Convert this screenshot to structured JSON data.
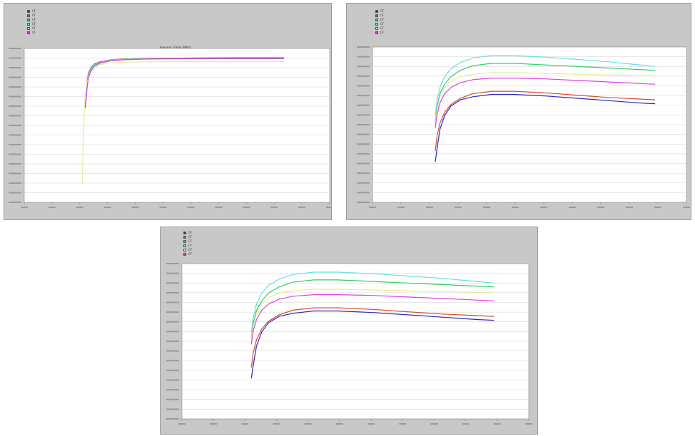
{
  "colors": {
    "panel_bg": "#c8c8c8",
    "plot_bg": "#ffffff",
    "grid": "#d0d0d0",
    "series": [
      "#2a2ab8",
      "#d94a2a",
      "#33cc66",
      "#66e0e0",
      "#eaea99",
      "#e040e0"
    ]
  },
  "chart_data": [
    {
      "type": "line",
      "title": "Average 2-Tone (Mb/s)",
      "xlabel": "",
      "ylabel": "",
      "grid": true,
      "legend_position": "top-left",
      "xlim": [
        0,
        100
      ],
      "ylim": [
        0,
        100
      ],
      "series": [
        {
          "name": "CF",
          "x": [
            20,
            20.5,
            21,
            22,
            23,
            25,
            28,
            32,
            40,
            50,
            60,
            70,
            80,
            85
          ],
          "values": [
            62,
            74,
            82,
            87,
            89,
            91,
            92,
            93,
            93.5,
            93.7,
            93.8,
            93.9,
            93.9,
            93.9
          ]
        },
        {
          "name": "CF",
          "x": [
            20,
            20.5,
            21,
            22,
            23,
            25,
            28,
            32,
            40,
            50,
            60,
            70,
            80,
            85
          ],
          "values": [
            66,
            78,
            84,
            88,
            90,
            91.5,
            92.5,
            93.2,
            93.5,
            93.6,
            93.6,
            93.6,
            93.6,
            93.6
          ]
        },
        {
          "name": "CF",
          "x": [
            20,
            20.5,
            21,
            22,
            23,
            25,
            28,
            32,
            40,
            50,
            60,
            70,
            80,
            85
          ],
          "values": [
            64,
            76,
            83,
            87.5,
            89.5,
            91,
            92.2,
            93,
            93.4,
            93.5,
            93.5,
            93.5,
            93.5,
            93.5
          ]
        },
        {
          "name": "CF",
          "x": [
            20,
            20.5,
            21,
            22,
            23,
            25,
            28,
            32,
            40,
            50,
            60,
            70,
            80,
            85
          ],
          "values": [
            63,
            75,
            82.5,
            87,
            89.2,
            91,
            92.2,
            93,
            93.3,
            93.4,
            93.4,
            93.4,
            93.4,
            93.4
          ]
        },
        {
          "name": "CF",
          "x": [
            19,
            19.3,
            19.8,
            20.5,
            21.5,
            23,
            25,
            28,
            32,
            40,
            50,
            60,
            70,
            80,
            85
          ],
          "values": [
            12,
            40,
            65,
            78,
            84,
            87.5,
            89.5,
            90.5,
            91,
            91.3,
            91.4,
            91.4,
            91.4,
            91.4,
            91.4
          ]
        },
        {
          "name": "CF",
          "x": [
            20,
            20.5,
            21,
            22,
            23,
            25,
            28,
            32,
            40,
            50,
            60,
            70,
            80,
            85
          ],
          "values": [
            61,
            73,
            81,
            86,
            88.5,
            90.5,
            91.8,
            92.6,
            93.1,
            93.3,
            93.4,
            93.4,
            93.4,
            93.4
          ]
        }
      ]
    },
    {
      "type": "line",
      "title": "",
      "xlabel": "",
      "ylabel": "",
      "grid": true,
      "legend_position": "top-left",
      "xlim": [
        0,
        100
      ],
      "ylim": [
        0,
        100
      ],
      "series": [
        {
          "name": "CF",
          "x": [
            20,
            20.6,
            21.5,
            23,
            25,
            28,
            32,
            38,
            45,
            55,
            65,
            75,
            85,
            90
          ],
          "values": [
            26,
            35,
            47,
            56,
            62,
            66,
            68,
            69.5,
            69.5,
            68.5,
            67,
            65.5,
            64,
            63.5
          ]
        },
        {
          "name": "CF",
          "x": [
            20,
            20.6,
            21.5,
            23,
            25,
            28,
            32,
            38,
            45,
            55,
            65,
            75,
            85,
            90
          ],
          "values": [
            33,
            43,
            51,
            58,
            63,
            67,
            70,
            71.5,
            71.5,
            70.5,
            69,
            67.5,
            66.5,
            66
          ]
        },
        {
          "name": "CF",
          "x": [
            20,
            20.6,
            21.5,
            23,
            25,
            28,
            32,
            38,
            45,
            55,
            65,
            75,
            85,
            90
          ],
          "values": [
            52,
            62,
            70,
            76,
            81,
            85,
            88,
            89.5,
            89.5,
            88.5,
            87.5,
            86.5,
            85.5,
            85
          ]
        },
        {
          "name": "CF",
          "x": [
            20,
            20.6,
            21.5,
            23,
            25,
            28,
            32,
            38,
            45,
            55,
            65,
            75,
            85,
            90
          ],
          "values": [
            56,
            66,
            74,
            81,
            86,
            90,
            93,
            94.5,
            94.5,
            93.5,
            92,
            90.5,
            88.5,
            87.5
          ]
        },
        {
          "name": "CF",
          "x": [
            20,
            20.6,
            21.5,
            23,
            25,
            28,
            32,
            38,
            45,
            55,
            65,
            75,
            85,
            90
          ],
          "values": [
            51,
            60,
            68,
            74,
            78,
            81,
            82.5,
            83.5,
            83.5,
            83,
            82.5,
            82,
            81.5,
            81.5
          ]
        },
        {
          "name": "CF",
          "x": [
            20,
            20.6,
            21.5,
            23,
            25,
            28,
            32,
            38,
            45,
            55,
            65,
            75,
            85,
            90
          ],
          "values": [
            48,
            57,
            64,
            70,
            74,
            77,
            79,
            80,
            80,
            79.5,
            78.5,
            77.5,
            76.5,
            76
          ]
        }
      ]
    },
    {
      "type": "line",
      "title": "",
      "xlabel": "",
      "ylabel": "",
      "grid": true,
      "legend_position": "top-left",
      "xlim": [
        0,
        100
      ],
      "ylim": [
        0,
        100
      ],
      "series": [
        {
          "name": "CF",
          "x": [
            20,
            20.6,
            21.5,
            23,
            25,
            28,
            32,
            38,
            45,
            55,
            65,
            75,
            85,
            90
          ],
          "values": [
            26,
            35,
            47,
            56,
            62,
            66,
            68,
            69.5,
            69.5,
            68.5,
            67,
            65.5,
            64,
            63.5
          ]
        },
        {
          "name": "CF",
          "x": [
            20,
            20.6,
            21.5,
            23,
            25,
            28,
            32,
            38,
            45,
            55,
            65,
            75,
            85,
            90
          ],
          "values": [
            33,
            43,
            51,
            58,
            63,
            67,
            70,
            71.5,
            71.5,
            70.5,
            69,
            67.5,
            66.5,
            66
          ]
        },
        {
          "name": "CF",
          "x": [
            20,
            20.6,
            21.5,
            23,
            25,
            28,
            32,
            38,
            45,
            55,
            65,
            75,
            85,
            90
          ],
          "values": [
            52,
            62,
            70,
            76,
            81,
            85,
            88,
            89.5,
            89.5,
            88.5,
            87.5,
            86.5,
            85.5,
            85
          ]
        },
        {
          "name": "CF",
          "x": [
            20,
            20.6,
            21.5,
            23,
            25,
            28,
            32,
            38,
            45,
            55,
            65,
            75,
            85,
            90
          ],
          "values": [
            56,
            66,
            74,
            81,
            86,
            90,
            93,
            94.5,
            94.5,
            93.5,
            92,
            90.5,
            88.5,
            87.5
          ]
        },
        {
          "name": "CF",
          "x": [
            20,
            20.6,
            21.5,
            23,
            25,
            28,
            32,
            38,
            45,
            55,
            65,
            75,
            85,
            90
          ],
          "values": [
            51,
            60,
            68,
            74,
            78,
            81,
            82.5,
            83.5,
            83.5,
            83,
            82.5,
            82,
            81.5,
            81.5
          ]
        },
        {
          "name": "CF",
          "x": [
            20,
            20.6,
            21.5,
            23,
            25,
            28,
            32,
            38,
            45,
            55,
            65,
            75,
            85,
            90
          ],
          "values": [
            48,
            57,
            64,
            70,
            74,
            77,
            79,
            80,
            80,
            79.5,
            78.5,
            77.5,
            76.5,
            76
          ]
        }
      ]
    }
  ]
}
